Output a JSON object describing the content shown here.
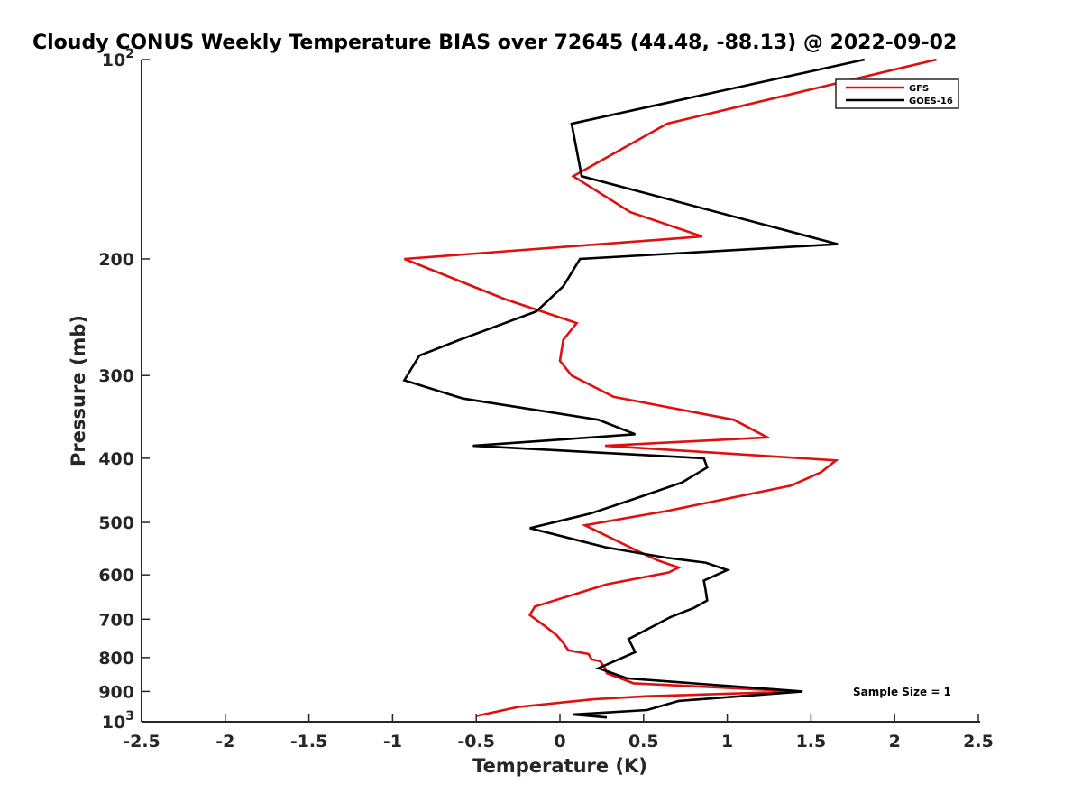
{
  "chart_data": {
    "type": "line",
    "title": "Cloudy CONUS Weekly Temperature BIAS over 72645 (44.48, -88.13) @ 2022-09-02",
    "xlabel": "Temperature (K)",
    "ylabel": "Pressure (mb)",
    "xlim": [
      -2.5,
      2.5
    ],
    "ylim": [
      100,
      1000
    ],
    "y_scale": "log",
    "y_direction": "reversed",
    "xticks": [
      "-2.5",
      "-2",
      "-1.5",
      "-1",
      "-0.5",
      "0",
      "0.5",
      "1",
      "1.5",
      "2",
      "2.5"
    ],
    "yticks": [
      {
        "value": 100,
        "base": "10",
        "exp": "2"
      },
      {
        "value": 200,
        "label": "200"
      },
      {
        "value": 300,
        "label": "300"
      },
      {
        "value": 400,
        "label": "400"
      },
      {
        "value": 500,
        "label": "500"
      },
      {
        "value": 600,
        "label": "600"
      },
      {
        "value": 700,
        "label": "700"
      },
      {
        "value": 800,
        "label": "800"
      },
      {
        "value": 900,
        "label": "900"
      },
      {
        "value": 1000,
        "base": "10",
        "exp": "3"
      }
    ],
    "grid": false,
    "legend_position": "top-right",
    "annotation": "Sample Size = 1",
    "series": [
      {
        "name": "GFS",
        "color": "#e01010",
        "points": [
          [
            2.25,
            100
          ],
          [
            0.64,
            125
          ],
          [
            0.08,
            150
          ],
          [
            0.42,
            170
          ],
          [
            0.85,
            185
          ],
          [
            -0.93,
            200
          ],
          [
            -0.33,
            230
          ],
          [
            0.1,
            250
          ],
          [
            0.02,
            265
          ],
          [
            0,
            285
          ],
          [
            0.07,
            300
          ],
          [
            0.32,
            323
          ],
          [
            1.04,
            350
          ],
          [
            1.24,
            372
          ],
          [
            0.27,
            383
          ],
          [
            1.65,
            403
          ],
          [
            1.56,
            420
          ],
          [
            1.38,
            440
          ],
          [
            0.65,
            480
          ],
          [
            0.15,
            505
          ],
          [
            0.45,
            550
          ],
          [
            0.58,
            570
          ],
          [
            0.71,
            585
          ],
          [
            0.65,
            595
          ],
          [
            0.28,
            620
          ],
          [
            -0.15,
            670
          ],
          [
            -0.18,
            690
          ],
          [
            -0.08,
            720
          ],
          [
            -0.02,
            740
          ],
          [
            0.02,
            760
          ],
          [
            0.05,
            780
          ],
          [
            0.17,
            790
          ],
          [
            0.19,
            805
          ],
          [
            0.24,
            810
          ],
          [
            0.27,
            830
          ],
          [
            0.28,
            845
          ],
          [
            0.44,
            875
          ],
          [
            1.43,
            900
          ],
          [
            0.52,
            915
          ],
          [
            0.2,
            925
          ],
          [
            -0.25,
            950
          ],
          [
            -0.5,
            980
          ]
        ]
      },
      {
        "name": "GOES-16",
        "color": "#000000",
        "points": [
          [
            1.82,
            100
          ],
          [
            0.07,
            125
          ],
          [
            0.13,
            150
          ],
          [
            1.66,
            190
          ],
          [
            0.12,
            200
          ],
          [
            0.02,
            220
          ],
          [
            -0.14,
            240
          ],
          [
            -0.6,
            265
          ],
          [
            -0.84,
            280
          ],
          [
            -0.93,
            305
          ],
          [
            -0.58,
            325
          ],
          [
            0.23,
            350
          ],
          [
            0.45,
            368
          ],
          [
            -0.52,
            383
          ],
          [
            0.86,
            400
          ],
          [
            0.88,
            413
          ],
          [
            0.73,
            435
          ],
          [
            0.42,
            463
          ],
          [
            0.18,
            485
          ],
          [
            -0.18,
            510
          ],
          [
            0.27,
            545
          ],
          [
            0.63,
            565
          ],
          [
            0.87,
            575
          ],
          [
            1,
            590
          ],
          [
            0.86,
            612
          ],
          [
            0.87,
            632
          ],
          [
            0.88,
            656
          ],
          [
            0.8,
            673
          ],
          [
            0.66,
            695
          ],
          [
            0.5,
            730
          ],
          [
            0.41,
            750
          ],
          [
            0.45,
            785
          ],
          [
            0.23,
            830
          ],
          [
            0.4,
            860
          ],
          [
            1.45,
            900
          ],
          [
            0.71,
            930
          ],
          [
            0.52,
            960
          ],
          [
            0.08,
            975
          ],
          [
            0.28,
            985
          ]
        ]
      }
    ]
  }
}
